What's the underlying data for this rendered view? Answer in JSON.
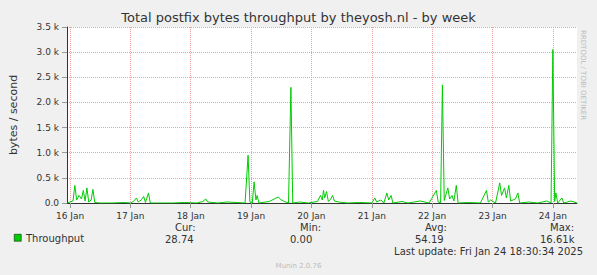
{
  "chart_data": {
    "type": "line",
    "title": "Total postfix bytes throughput by theyosh.nl - by week",
    "y_label": "bytes / second",
    "x": [
      15.95,
      16.0,
      16.05,
      16.08,
      16.11,
      16.15,
      16.19,
      16.22,
      16.25,
      16.28,
      16.31,
      16.35,
      16.38,
      16.41,
      16.5,
      16.7,
      16.9,
      17.0,
      17.05,
      17.1,
      17.13,
      17.18,
      17.22,
      17.25,
      17.3,
      17.33,
      17.5,
      17.7,
      17.9,
      18.1,
      18.2,
      18.25,
      18.28,
      18.45,
      18.6,
      18.75,
      18.9,
      18.95,
      18.98,
      19.02,
      19.05,
      19.08,
      19.1,
      19.13,
      19.3,
      19.45,
      19.5,
      19.55,
      19.62,
      19.66,
      19.69,
      19.8,
      19.95,
      20.1,
      20.15,
      20.18,
      20.2,
      20.22,
      20.25,
      20.28,
      20.32,
      20.35,
      20.38,
      20.45,
      20.6,
      20.8,
      21.0,
      21.05,
      21.08,
      21.15,
      21.2,
      21.25,
      21.28,
      21.32,
      21.35,
      21.5,
      21.6,
      21.8,
      21.95,
      22.07,
      22.1,
      22.14,
      22.17,
      22.2,
      22.26,
      22.29,
      22.33,
      22.36,
      22.4,
      22.43,
      22.6,
      22.8,
      22.9,
      22.93,
      22.97,
      23.05,
      23.12,
      23.15,
      23.2,
      23.23,
      23.27,
      23.3,
      23.38,
      23.42,
      23.45,
      23.6,
      23.75,
      23.9,
      23.97,
      24.0,
      24.03,
      24.05,
      24.08,
      24.15,
      24.18,
      24.3,
      24.4
    ],
    "series": [
      {
        "name": "Throughput",
        "color": "#00cc00",
        "values": [
          0,
          20,
          40,
          350,
          60,
          150,
          80,
          250,
          40,
          300,
          20,
          60,
          270,
          10,
          0,
          0,
          10,
          0,
          30,
          100,
          20,
          60,
          130,
          10,
          200,
          0,
          0,
          0,
          10,
          0,
          30,
          80,
          20,
          0,
          20,
          10,
          0,
          950,
          20,
          0,
          420,
          60,
          150,
          0,
          30,
          120,
          60,
          30,
          0,
          2300,
          0,
          20,
          0,
          30,
          150,
          60,
          250,
          100,
          230,
          30,
          80,
          150,
          40,
          20,
          0,
          10,
          0,
          100,
          20,
          60,
          0,
          200,
          60,
          150,
          0,
          30,
          0,
          40,
          0,
          250,
          20,
          0,
          2350,
          50,
          300,
          80,
          150,
          40,
          350,
          0,
          10,
          0,
          250,
          20,
          60,
          0,
          400,
          150,
          300,
          100,
          350,
          40,
          80,
          200,
          0,
          20,
          0,
          40,
          0,
          3050,
          30,
          200,
          0,
          100,
          0,
          40,
          0
        ]
      }
    ],
    "xlim": [
      15.95,
      24.4
    ],
    "xticks": [
      {
        "value": 16,
        "label": "16 Jan"
      },
      {
        "value": 17,
        "label": "17 Jan"
      },
      {
        "value": 18,
        "label": "18 Jan"
      },
      {
        "value": 19,
        "label": "19 Jan"
      },
      {
        "value": 20,
        "label": "20 Jan"
      },
      {
        "value": 21,
        "label": "21 Jan"
      },
      {
        "value": 22,
        "label": "22 Jan"
      },
      {
        "value": 23,
        "label": "23 Jan"
      },
      {
        "value": 24,
        "label": "24 Jan"
      }
    ],
    "ylim": [
      0,
      3500
    ],
    "yticks": [
      {
        "value": 0,
        "label": "0.0"
      },
      {
        "value": 500,
        "label": "0.5 k"
      },
      {
        "value": 1000,
        "label": "1.0 k"
      },
      {
        "value": 1500,
        "label": "1.5 k"
      },
      {
        "value": 2000,
        "label": "2.0 k"
      },
      {
        "value": 2500,
        "label": "2.5 k"
      },
      {
        "value": 3000,
        "label": "3.0 k"
      },
      {
        "value": 3500,
        "label": "3.5 k"
      }
    ],
    "grid": true,
    "stats": [
      {
        "label": "Cur:",
        "text": "28.74"
      },
      {
        "label": "Min:",
        "text": "0.00"
      },
      {
        "label": "Avg:",
        "text": "54.19"
      },
      {
        "label": "Max:",
        "text": "16.61k"
      }
    ],
    "footer": "Last update: Fri Jan 24 18:30:34 2025",
    "watermark": "Munin 2.0.76",
    "side_text": "RRDTOOL / TOBI OETIKER"
  }
}
